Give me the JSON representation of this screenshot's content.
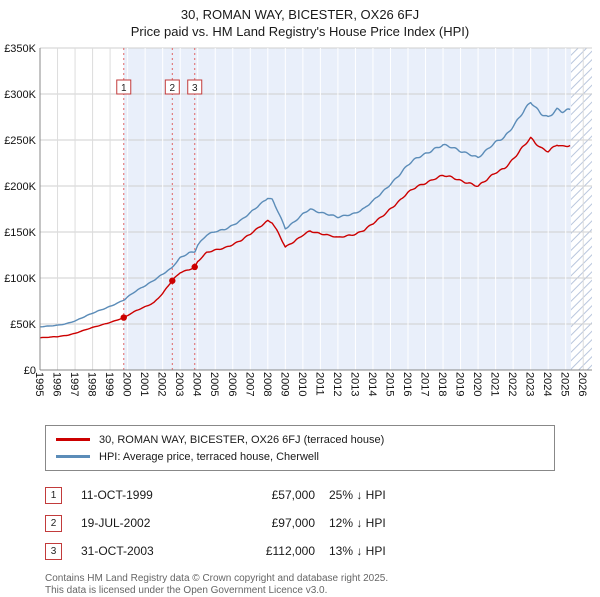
{
  "title": "30, ROMAN WAY, BICESTER, OX26 6FJ",
  "subtitle": "Price paid vs. HM Land Registry's House Price Index (HPI)",
  "legend": [
    {
      "label": "30, ROMAN WAY, BICESTER, OX26 6FJ (terraced house)",
      "color": "#cc0000"
    },
    {
      "label": "HPI: Average price, terraced house, Cherwell",
      "color": "#5b8cb8"
    }
  ],
  "transactions": [
    {
      "num": "1",
      "date": "11-OCT-1999",
      "price": "£57,000",
      "hpi": "25% ↓ HPI"
    },
    {
      "num": "2",
      "date": "19-JUL-2002",
      "price": "£97,000",
      "hpi": "12% ↓ HPI"
    },
    {
      "num": "3",
      "date": "31-OCT-2003",
      "price": "£112,000",
      "hpi": "13% ↓ HPI"
    }
  ],
  "footer": [
    "Contains HM Land Registry data © Crown copyright and database right 2025.",
    "This data is licensed under the Open Government Licence v3.0."
  ],
  "chart_data": {
    "type": "line",
    "x_range": [
      1995,
      2026.5
    ],
    "y_range": [
      0,
      350000
    ],
    "grid": true,
    "legend_position": "below",
    "x_ticks": [
      1995,
      1996,
      1997,
      1998,
      1999,
      2000,
      2001,
      2002,
      2003,
      2004,
      2005,
      2006,
      2007,
      2008,
      2009,
      2010,
      2011,
      2012,
      2013,
      2014,
      2015,
      2016,
      2017,
      2018,
      2019,
      2020,
      2021,
      2022,
      2023,
      2024,
      2025,
      2026
    ],
    "y_ticks": [
      [
        0,
        "£0"
      ],
      [
        50000,
        "£50K"
      ],
      [
        100000,
        "£100K"
      ],
      [
        150000,
        "£150K"
      ],
      [
        200000,
        "£200K"
      ],
      [
        250000,
        "£250K"
      ],
      [
        300000,
        "£300K"
      ],
      [
        350000,
        "£350K"
      ]
    ],
    "shaded_region": [
      1999.78,
      2025.3
    ],
    "hatched_region": [
      2025.3,
      2026.5
    ],
    "colors": {
      "shade": "#e9effa",
      "hatch": "#b9c6dd",
      "grid": "#cfcfcf",
      "dashed": "#e06666",
      "axis": "#888888"
    },
    "sales": [
      {
        "n": "1",
        "x": 1999.78,
        "price": 57000
      },
      {
        "n": "2",
        "x": 2002.55,
        "price": 97000
      },
      {
        "n": "3",
        "x": 2003.83,
        "price": 112000
      }
    ],
    "series": [
      {
        "name": "30, ROMAN WAY, BICESTER, OX26 6FJ (terraced house)",
        "color": "#cc0000",
        "points": [
          [
            1995,
            35000
          ],
          [
            1995.5,
            35500
          ],
          [
            1996,
            36200
          ],
          [
            1996.5,
            37700
          ],
          [
            1997,
            40000
          ],
          [
            1997.5,
            43000
          ],
          [
            1998,
            46000
          ],
          [
            1998.5,
            49000
          ],
          [
            1999,
            52000
          ],
          [
            1999.5,
            55000
          ],
          [
            1999.78,
            57000
          ],
          [
            2000,
            59000
          ],
          [
            2000.5,
            64500
          ],
          [
            2001,
            69000
          ],
          [
            2001.5,
            73500
          ],
          [
            2002,
            83000
          ],
          [
            2002.55,
            97000
          ],
          [
            2003,
            106000
          ],
          [
            2003.83,
            112000
          ],
          [
            2004,
            118000
          ],
          [
            2004.5,
            127000
          ],
          [
            2005,
            130000
          ],
          [
            2005.5,
            133000
          ],
          [
            2006,
            137000
          ],
          [
            2006.5,
            141000
          ],
          [
            2007,
            147000
          ],
          [
            2007.5,
            155000
          ],
          [
            2008,
            163000
          ],
          [
            2008.25,
            161000
          ],
          [
            2008.6,
            149000
          ],
          [
            2009,
            133000
          ],
          [
            2009.5,
            139000
          ],
          [
            2010,
            147000
          ],
          [
            2010.4,
            152000
          ],
          [
            2011,
            148000
          ],
          [
            2011.5,
            145500
          ],
          [
            2012,
            144000
          ],
          [
            2012.5,
            146500
          ],
          [
            2013,
            148000
          ],
          [
            2013.5,
            151500
          ],
          [
            2014,
            158500
          ],
          [
            2014.5,
            167000
          ],
          [
            2015,
            176000
          ],
          [
            2015.5,
            183500
          ],
          [
            2016,
            192000
          ],
          [
            2016.5,
            199000
          ],
          [
            2017,
            204000
          ],
          [
            2017.5,
            208500
          ],
          [
            2018,
            211000
          ],
          [
            2018.5,
            208500
          ],
          [
            2019,
            206000
          ],
          [
            2019.5,
            204000
          ],
          [
            2020,
            200000
          ],
          [
            2020.5,
            206000
          ],
          [
            2021,
            214000
          ],
          [
            2021.5,
            220000
          ],
          [
            2022,
            230000
          ],
          [
            2022.5,
            240500
          ],
          [
            2023,
            251000
          ],
          [
            2023.25,
            246500
          ],
          [
            2023.6,
            241500
          ],
          [
            2024,
            239000
          ],
          [
            2024.5,
            245500
          ],
          [
            2024.8,
            242000
          ],
          [
            2025.3,
            243000
          ]
        ]
      },
      {
        "name": "HPI: Average price, terraced house, Cherwell",
        "color": "#5b8cb8",
        "points": [
          [
            1995,
            47000
          ],
          [
            1995.5,
            47500
          ],
          [
            1996,
            48500
          ],
          [
            1996.5,
            50500
          ],
          [
            1997,
            53500
          ],
          [
            1997.5,
            57500
          ],
          [
            1998,
            61500
          ],
          [
            1998.5,
            65500
          ],
          [
            1999,
            69500
          ],
          [
            1999.5,
            73500
          ],
          [
            1999.8,
            76000
          ],
          [
            2000,
            79000
          ],
          [
            2000.5,
            86000
          ],
          [
            2001,
            92000
          ],
          [
            2001.5,
            98000
          ],
          [
            2002,
            104000
          ],
          [
            2002.5,
            110000
          ],
          [
            2003,
            122000
          ],
          [
            2003.5,
            128000
          ],
          [
            2003.83,
            129000
          ],
          [
            2004,
            136000
          ],
          [
            2004.5,
            146000
          ],
          [
            2005,
            150000
          ],
          [
            2005.5,
            153000
          ],
          [
            2006,
            158000
          ],
          [
            2006.5,
            163000
          ],
          [
            2007,
            170000
          ],
          [
            2007.5,
            179000
          ],
          [
            2008,
            188000
          ],
          [
            2008.25,
            186000
          ],
          [
            2008.6,
            172000
          ],
          [
            2009,
            153000
          ],
          [
            2009.5,
            160000
          ],
          [
            2010,
            170000
          ],
          [
            2010.4,
            176000
          ],
          [
            2011,
            171000
          ],
          [
            2011.5,
            168000
          ],
          [
            2012,
            166000
          ],
          [
            2012.5,
            169000
          ],
          [
            2013,
            171000
          ],
          [
            2013.5,
            175000
          ],
          [
            2014,
            183000
          ],
          [
            2014.5,
            193000
          ],
          [
            2015,
            203000
          ],
          [
            2015.5,
            212000
          ],
          [
            2016,
            222000
          ],
          [
            2016.5,
            230000
          ],
          [
            2017,
            236000
          ],
          [
            2017.5,
            241000
          ],
          [
            2018,
            244000
          ],
          [
            2018.5,
            241000
          ],
          [
            2019,
            238000
          ],
          [
            2019.5,
            236000
          ],
          [
            2020,
            231000
          ],
          [
            2020.5,
            238000
          ],
          [
            2021,
            247000
          ],
          [
            2021.5,
            254000
          ],
          [
            2022,
            266000
          ],
          [
            2022.5,
            278000
          ],
          [
            2023,
            290000
          ],
          [
            2023.25,
            285000
          ],
          [
            2023.6,
            279000
          ],
          [
            2024,
            276000
          ],
          [
            2024.5,
            284000
          ],
          [
            2024.8,
            280000
          ],
          [
            2025.3,
            282000
          ]
        ]
      }
    ]
  }
}
